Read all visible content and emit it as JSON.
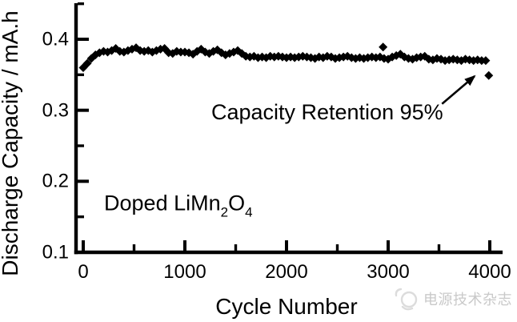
{
  "chart_data": {
    "type": "scatter",
    "title": "",
    "xlabel": "Cycle Number",
    "ylabel": "Discharge Capacity / mA.h",
    "xlim": [
      0,
      4130
    ],
    "ylim": [
      0.1,
      0.452
    ],
    "x_ticks": [
      0,
      1000,
      2000,
      3000,
      4000
    ],
    "x_tick_labels": [
      "0",
      "1000",
      "2000",
      "3000",
      "4000"
    ],
    "x_minor_ticks": [
      500,
      1500,
      2500,
      3500
    ],
    "y_ticks": [
      0.1,
      0.2,
      0.3,
      0.4
    ],
    "y_tick_labels": [
      "0.1",
      "0.2",
      "0.3",
      "0.4"
    ],
    "y_minor_ticks": [
      0.15,
      0.25,
      0.35,
      0.45
    ],
    "grid": false,
    "legend_position": "none",
    "marker": "filled-diamond",
    "marker_color": "#000000",
    "axis_color": "#000000",
    "background_color": "#ffffff",
    "series": [
      {
        "name": "Doped LiMn2O4",
        "points": [
          [
            0,
            0.36
          ],
          [
            40,
            0.366
          ],
          [
            80,
            0.373
          ],
          [
            120,
            0.378
          ],
          [
            160,
            0.381
          ],
          [
            200,
            0.383
          ],
          [
            240,
            0.382
          ],
          [
            280,
            0.384
          ],
          [
            320,
            0.387
          ],
          [
            360,
            0.383
          ],
          [
            400,
            0.382
          ],
          [
            440,
            0.384
          ],
          [
            480,
            0.386
          ],
          [
            520,
            0.388
          ],
          [
            560,
            0.384
          ],
          [
            600,
            0.383
          ],
          [
            640,
            0.384
          ],
          [
            680,
            0.382
          ],
          [
            720,
            0.384
          ],
          [
            760,
            0.386
          ],
          [
            800,
            0.387
          ],
          [
            840,
            0.381
          ],
          [
            880,
            0.38
          ],
          [
            920,
            0.383
          ],
          [
            960,
            0.382
          ],
          [
            1000,
            0.382
          ],
          [
            1040,
            0.381
          ],
          [
            1080,
            0.379
          ],
          [
            1120,
            0.383
          ],
          [
            1160,
            0.386
          ],
          [
            1200,
            0.382
          ],
          [
            1240,
            0.38
          ],
          [
            1280,
            0.383
          ],
          [
            1320,
            0.385
          ],
          [
            1360,
            0.381
          ],
          [
            1400,
            0.378
          ],
          [
            1440,
            0.38
          ],
          [
            1480,
            0.382
          ],
          [
            1520,
            0.384
          ],
          [
            1560,
            0.38
          ],
          [
            1600,
            0.376
          ],
          [
            1640,
            0.375
          ],
          [
            1680,
            0.376
          ],
          [
            1720,
            0.374
          ],
          [
            1760,
            0.375
          ],
          [
            1800,
            0.374
          ],
          [
            1840,
            0.376
          ],
          [
            1880,
            0.375
          ],
          [
            1920,
            0.376
          ],
          [
            1960,
            0.375
          ],
          [
            2000,
            0.374
          ],
          [
            2040,
            0.375
          ],
          [
            2080,
            0.374
          ],
          [
            2120,
            0.375
          ],
          [
            2160,
            0.376
          ],
          [
            2200,
            0.375
          ],
          [
            2240,
            0.374
          ],
          [
            2280,
            0.373
          ],
          [
            2320,
            0.375
          ],
          [
            2360,
            0.374
          ],
          [
            2400,
            0.376
          ],
          [
            2440,
            0.375
          ],
          [
            2480,
            0.373
          ],
          [
            2520,
            0.374
          ],
          [
            2560,
            0.375
          ],
          [
            2600,
            0.376
          ],
          [
            2640,
            0.374
          ],
          [
            2680,
            0.373
          ],
          [
            2720,
            0.374
          ],
          [
            2760,
            0.373
          ],
          [
            2800,
            0.374
          ],
          [
            2840,
            0.375
          ],
          [
            2880,
            0.374
          ],
          [
            2920,
            0.375
          ],
          [
            2950,
            0.389
          ],
          [
            2960,
            0.373
          ],
          [
            3000,
            0.372
          ],
          [
            3040,
            0.375
          ],
          [
            3080,
            0.377
          ],
          [
            3120,
            0.379
          ],
          [
            3160,
            0.375
          ],
          [
            3200,
            0.373
          ],
          [
            3240,
            0.372
          ],
          [
            3280,
            0.374
          ],
          [
            3320,
            0.375
          ],
          [
            3360,
            0.376
          ],
          [
            3400,
            0.372
          ],
          [
            3440,
            0.371
          ],
          [
            3480,
            0.373
          ],
          [
            3520,
            0.372
          ],
          [
            3560,
            0.37
          ],
          [
            3600,
            0.371
          ],
          [
            3640,
            0.372
          ],
          [
            3680,
            0.371
          ],
          [
            3720,
            0.37
          ],
          [
            3760,
            0.372
          ],
          [
            3800,
            0.371
          ],
          [
            3840,
            0.37
          ],
          [
            3880,
            0.371
          ],
          [
            3920,
            0.37
          ],
          [
            3960,
            0.37
          ],
          [
            3990,
            0.349
          ]
        ]
      }
    ],
    "annotations": {
      "retention": {
        "text": "Capacity Retention 95%",
        "retention_pct": 95,
        "text_anchor": [
          2400,
          0.287
        ],
        "arrow_from": [
          3530,
          0.309
        ],
        "arrow_to": [
          3850,
          0.348
        ],
        "points_to": [
          3990,
          0.349
        ]
      },
      "sample": {
        "prefix": "Doped LiMn",
        "sub1": "2",
        "mid": "O",
        "sub2": "4",
        "anchor": [
          205,
          0.159
        ]
      }
    }
  },
  "watermark": {
    "text": "电源技术杂志",
    "color": "#c9c9c9",
    "icon": "power-source-magazine-logo"
  }
}
